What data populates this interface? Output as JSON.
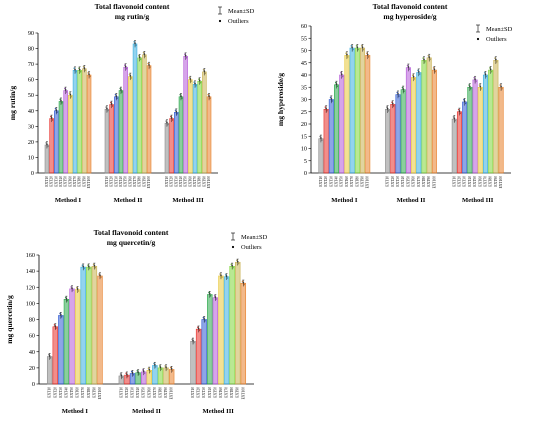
{
  "colors": [
    "#8c8c8c",
    "#e8302a",
    "#2f5bd3",
    "#2aa84a",
    "#b45ad8",
    "#e8c83a",
    "#38aee0",
    "#7fd63a",
    "#c8b050",
    "#e8802a"
  ],
  "chart_data": [
    {
      "type": "bar",
      "title": "Total flavonoid content",
      "subtitle": "mg rutin/g",
      "ylabel": "mg rutin/g",
      "ylim": [
        0,
        90
      ],
      "yticks": [
        0,
        10,
        20,
        30,
        40,
        50,
        60,
        70,
        80,
        90
      ],
      "legend": {
        "mean": "Mean±SD",
        "outliers": "Outliers",
        "position": "top-right"
      },
      "groups": [
        "Method I",
        "Method II",
        "Method III"
      ],
      "categories": [
        "EXT10",
        "EXT20",
        "EXT30",
        "EXT40",
        "EXT50",
        "EXT60",
        "EXT70",
        "EXT80",
        "EXT90",
        "EXT100"
      ],
      "series": [
        {
          "values": [
            18,
            35,
            40,
            46,
            53,
            50,
            66,
            66,
            67,
            63
          ]
        },
        {
          "values": [
            41,
            44,
            49,
            53,
            68,
            62,
            83,
            74,
            76,
            69
          ]
        },
        {
          "values": [
            32,
            35,
            39,
            49,
            75,
            60,
            57,
            59,
            65,
            49
          ]
        }
      ]
    },
    {
      "type": "bar",
      "title": "Total flavonoid content",
      "subtitle": "mg hyperoside/g",
      "ylabel": "mg hyperoside/g",
      "ylim": [
        0,
        60
      ],
      "yticks": [
        0,
        5,
        10,
        15,
        20,
        25,
        30,
        35,
        40,
        45,
        50,
        55,
        60
      ],
      "legend": {
        "mean": "Mean±SD",
        "outliers": "Outliers",
        "position": "top-right"
      },
      "groups": [
        "Method I",
        "Method II",
        "Method III"
      ],
      "categories": [
        "EXT10",
        "EXT20",
        "EXT30",
        "EXT40",
        "EXT50",
        "EXT60",
        "EXT70",
        "EXT80",
        "EXT90",
        "EXT100"
      ],
      "series": [
        {
          "values": [
            14,
            26,
            30,
            36,
            40,
            48,
            51,
            51,
            51,
            48
          ]
        },
        {
          "values": [
            26,
            28,
            32,
            34,
            43,
            39,
            41,
            46,
            47,
            42
          ]
        },
        {
          "values": [
            22,
            25,
            29,
            35,
            38,
            35,
            40,
            42,
            46,
            35
          ]
        }
      ]
    },
    {
      "type": "bar",
      "title": "Total flavonoid content",
      "subtitle": "mg quercetin/g",
      "ylabel": "mg quercetin/g",
      "ylim": [
        0,
        160
      ],
      "yticks": [
        0,
        20,
        40,
        60,
        80,
        100,
        120,
        140,
        160
      ],
      "legend": {
        "mean": "Mean±SD",
        "outliers": "Outliers",
        "position": "top-right"
      },
      "groups": [
        "Method I",
        "Method II",
        "Method III"
      ],
      "categories": [
        "EXT10",
        "EXT20",
        "EXT30",
        "EXT40",
        "EXT50",
        "EXT60",
        "EXT70",
        "EXT80",
        "EXT90",
        "EXT100"
      ],
      "series": [
        {
          "values": [
            34,
            71,
            85,
            105,
            118,
            117,
            145,
            145,
            146,
            134
          ]
        },
        {
          "values": [
            10,
            11,
            13,
            14,
            15,
            17,
            23,
            20,
            20,
            18
          ]
        },
        {
          "values": [
            53,
            68,
            80,
            111,
            107,
            134,
            133,
            146,
            151,
            125
          ]
        }
      ]
    }
  ]
}
